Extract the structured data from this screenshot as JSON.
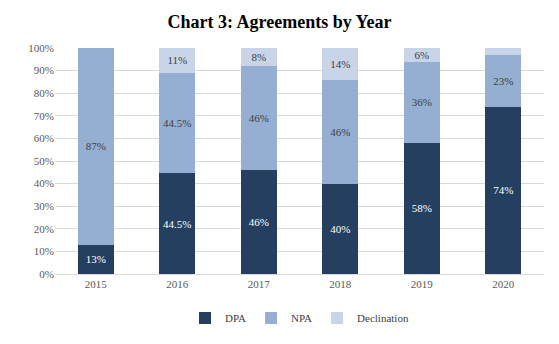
{
  "chart_data": {
    "type": "bar",
    "title": "Chart 3: Agreements by Year",
    "categories": [
      "2015",
      "2016",
      "2017",
      "2018",
      "2019",
      "2020"
    ],
    "series": [
      {
        "name": "DPA",
        "color": "#243f60",
        "values": [
          13,
          44.5,
          46,
          40,
          58,
          74
        ],
        "value_labels": [
          "13%",
          "44.5%",
          "46%",
          "40%",
          "58%",
          "74%"
        ]
      },
      {
        "name": "NPA",
        "color": "#95afd2",
        "values": [
          87,
          44.5,
          46,
          46,
          36,
          23
        ],
        "value_labels": [
          "87%",
          "44.5%",
          "46%",
          "46%",
          "36%",
          "23%"
        ]
      },
      {
        "name": "Declination",
        "color": "#c8d5e9",
        "values": [
          0,
          11,
          8,
          14,
          6,
          3
        ],
        "value_labels": [
          null,
          "11%",
          "8%",
          "14%",
          "6%",
          null
        ]
      }
    ],
    "ylim": [
      0,
      100
    ],
    "yticks": [
      {
        "value": 0,
        "label": "0%"
      },
      {
        "value": 10,
        "label": "10%"
      },
      {
        "value": 20,
        "label": "20%"
      },
      {
        "value": 30,
        "label": "30%"
      },
      {
        "value": 40,
        "label": "40%"
      },
      {
        "value": 50,
        "label": "50%"
      },
      {
        "value": 60,
        "label": "60%"
      },
      {
        "value": 70,
        "label": "70%"
      },
      {
        "value": 80,
        "label": "80%"
      },
      {
        "value": 90,
        "label": "90%"
      },
      {
        "value": 100,
        "label": "100%"
      }
    ],
    "stacked": true,
    "data_labels": true,
    "grid": true,
    "legend": "bottom"
  }
}
